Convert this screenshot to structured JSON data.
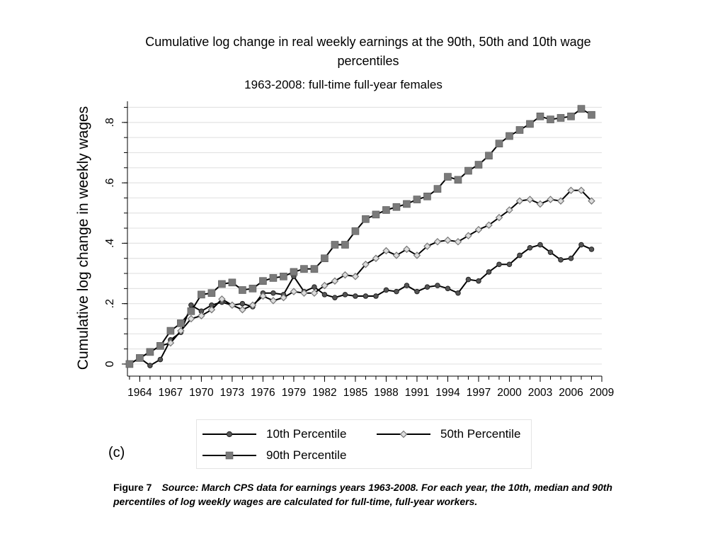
{
  "chart_data": {
    "type": "line",
    "title": "Cumulative log change in real weekly earnings at the 90th, 50th and 10th wage percentiles",
    "subtitle": "1963-2008: full-time full-year  females",
    "xlabel": "",
    "ylabel": "Cumulative log change in weekly wages",
    "xlim": [
      1962.8,
      2009
    ],
    "ylim": [
      -0.04,
      0.87
    ],
    "x_ticks": [
      1964,
      1967,
      1970,
      1973,
      1976,
      1979,
      1982,
      1985,
      1988,
      1991,
      1994,
      1997,
      2000,
      2003,
      2006,
      2009
    ],
    "x_tick_labels": [
      "1964",
      "1967",
      "1970",
      "1973",
      "1976",
      "1979",
      "1982",
      "1985",
      "1988",
      "1991",
      "1994",
      "1997",
      "2000",
      "2003",
      "2006",
      "2009"
    ],
    "y_ticks": [
      0,
      0.2,
      0.4,
      0.6,
      0.8
    ],
    "y_tick_labels": [
      "0",
      ".2",
      ".4",
      ".6",
      ".8"
    ],
    "y_minor_step": 0.05,
    "grid": true,
    "legend_position": "bottom",
    "x": [
      1963,
      1964,
      1965,
      1966,
      1967,
      1968,
      1969,
      1970,
      1971,
      1972,
      1973,
      1974,
      1975,
      1976,
      1977,
      1978,
      1979,
      1980,
      1981,
      1982,
      1983,
      1984,
      1985,
      1986,
      1987,
      1988,
      1989,
      1990,
      1991,
      1992,
      1993,
      1994,
      1995,
      1996,
      1997,
      1998,
      1999,
      2000,
      2001,
      2002,
      2003,
      2004,
      2005,
      2006,
      2007,
      2008
    ],
    "series": [
      {
        "name": "10th Percentile",
        "marker": "circle",
        "color": "#555555",
        "values": [
          0.0,
          0.02,
          -0.005,
          0.015,
          0.08,
          0.105,
          0.195,
          0.175,
          0.195,
          0.205,
          0.195,
          0.2,
          0.19,
          0.235,
          0.235,
          0.23,
          0.29,
          0.24,
          0.255,
          0.23,
          0.22,
          0.23,
          0.225,
          0.225,
          0.225,
          0.245,
          0.24,
          0.26,
          0.24,
          0.255,
          0.26,
          0.25,
          0.235,
          0.28,
          0.275,
          0.305,
          0.33,
          0.33,
          0.36,
          0.385,
          0.395,
          0.37,
          0.345,
          0.35,
          0.395,
          0.38
        ]
      },
      {
        "name": "50th Percentile",
        "marker": "diamond",
        "color": "#aaaaaa",
        "values": [
          0.0,
          0.02,
          0.04,
          0.06,
          0.07,
          0.11,
          0.15,
          0.16,
          0.18,
          0.215,
          0.195,
          0.18,
          0.195,
          0.225,
          0.21,
          0.22,
          0.24,
          0.235,
          0.235,
          0.26,
          0.275,
          0.295,
          0.29,
          0.33,
          0.35,
          0.375,
          0.36,
          0.38,
          0.36,
          0.39,
          0.405,
          0.41,
          0.405,
          0.425,
          0.445,
          0.46,
          0.485,
          0.51,
          0.54,
          0.545,
          0.53,
          0.545,
          0.54,
          0.575,
          0.575,
          0.54
        ]
      },
      {
        "name": "90th Percentile",
        "marker": "square",
        "color": "#7a7a7a",
        "values": [
          0.0,
          0.02,
          0.04,
          0.06,
          0.11,
          0.135,
          0.175,
          0.23,
          0.235,
          0.265,
          0.27,
          0.245,
          0.25,
          0.275,
          0.285,
          0.29,
          0.305,
          0.315,
          0.315,
          0.35,
          0.395,
          0.395,
          0.44,
          0.48,
          0.495,
          0.51,
          0.52,
          0.53,
          0.545,
          0.555,
          0.58,
          0.62,
          0.61,
          0.64,
          0.66,
          0.69,
          0.73,
          0.755,
          0.775,
          0.795,
          0.82,
          0.81,
          0.815,
          0.82,
          0.845,
          0.825
        ]
      }
    ]
  },
  "panel_label": "(c)",
  "caption": {
    "figure_label": "Figure 7",
    "text": "Source: March CPS data for earnings years 1963-2008. For each year, the 10th, median and 90th percentiles of log weekly wages are calculated for full-time, full-year workers."
  }
}
